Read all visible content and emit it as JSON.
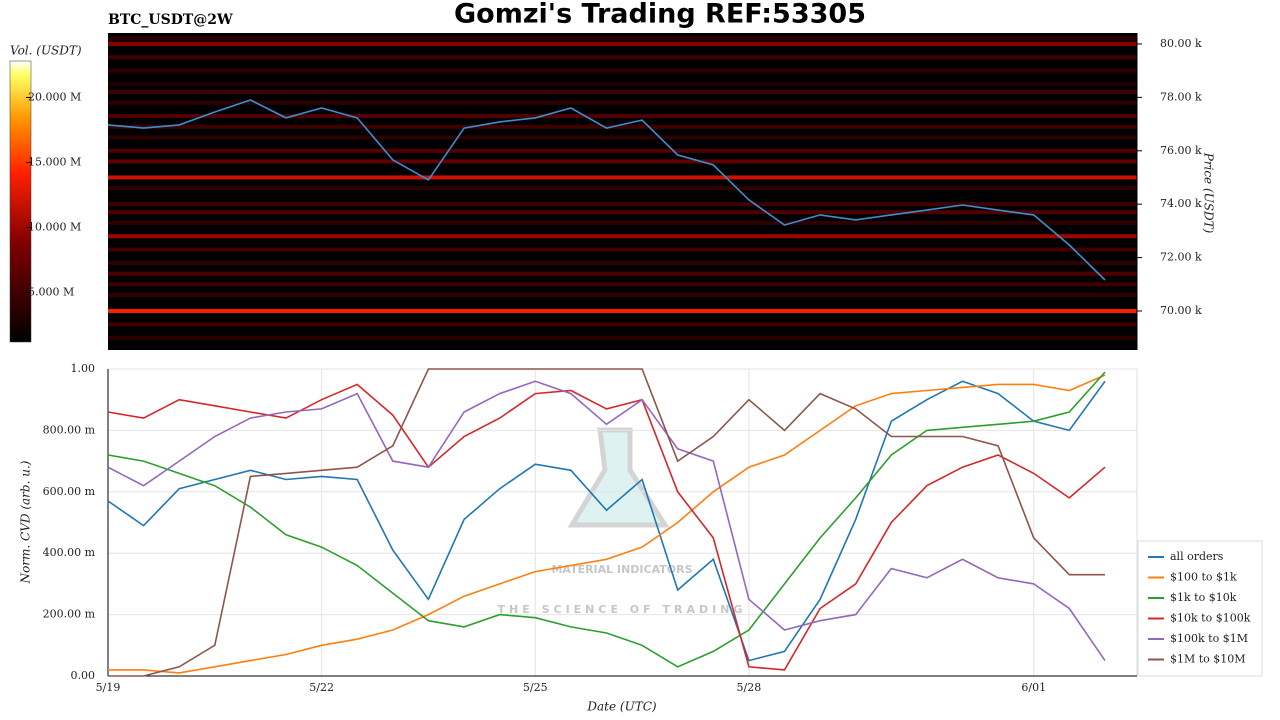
{
  "chart_data": [
    {
      "type": "heatmap",
      "symbol": "BTC_USDT@2W",
      "title": "Gomzi's Trading REF:53305",
      "colorbar_label": "Vol. (USDT)",
      "y_label": "Price (USDT)",
      "levels": [
        80200,
        80000,
        79500,
        79000,
        78500,
        78200,
        77800,
        77300,
        76900,
        76500,
        76000,
        75600,
        75000,
        74600,
        74000,
        73700,
        73300,
        72800,
        72300,
        71800,
        71400,
        71000,
        70600,
        70000,
        69500,
        69000
      ],
      "volumes": [
        4,
        9,
        5,
        4,
        3,
        5,
        4,
        6,
        5,
        4,
        6,
        7,
        12,
        4,
        5,
        6,
        4,
        10,
        5,
        4,
        6,
        5,
        4,
        14,
        5,
        4
      ],
      "clim": [
        1.2,
        22.8
      ],
      "cticks": [
        {
          "value": 5,
          "label": "5.000 M"
        },
        {
          "value": 10,
          "label": "10.000 M"
        },
        {
          "value": 15,
          "label": "15.000 M"
        },
        {
          "value": 20,
          "label": "20.000 M"
        }
      ],
      "series": [
        {
          "name": "price",
          "color": "#3b8fd0",
          "values": [
            76970,
            76850,
            76970,
            77450,
            77900,
            77230,
            77600,
            77230,
            75660,
            74910,
            76850,
            77080,
            77230,
            77600,
            76850,
            77150,
            75840,
            75470,
            74160,
            73220,
            73600,
            73410,
            73600,
            73780,
            73970,
            73780,
            73600,
            72470,
            71160
          ]
        }
      ],
      "ylim": [
        68540,
        80410
      ],
      "yticks": [
        {
          "value": 70000,
          "label": "70.00 k"
        },
        {
          "value": 72000,
          "label": "72.00 k"
        },
        {
          "value": 74000,
          "label": "74.00 k"
        },
        {
          "value": 76000,
          "label": "76.00 k"
        },
        {
          "value": 78000,
          "label": "78.00 k"
        },
        {
          "value": 80000,
          "label": "80.00 k"
        }
      ]
    },
    {
      "type": "line",
      "x_label": "Date (UTC)",
      "y_label": "Norm. CVD (arb. u.)",
      "watermark": [
        "MATERIAL INDICATORS",
        "THE SCIENCE OF TRADING"
      ],
      "categories": [
        "5/19",
        null,
        null,
        null,
        null,
        null,
        "5/22",
        null,
        null,
        null,
        null,
        null,
        "5/25",
        null,
        null,
        null,
        null,
        null,
        "5/28",
        null,
        null,
        null,
        null,
        null,
        null,
        null,
        "6/01",
        null,
        null
      ],
      "series": [
        {
          "name": "all orders",
          "color": "#1f77b4",
          "values": [
            0.57,
            0.49,
            0.61,
            0.64,
            0.67,
            0.64,
            0.65,
            0.64,
            0.41,
            0.25,
            0.51,
            0.61,
            0.69,
            0.67,
            0.54,
            0.64,
            0.28,
            0.38,
            0.05,
            0.08,
            0.25,
            0.51,
            0.83,
            0.9,
            0.96,
            0.92,
            0.83,
            0.8,
            0.96
          ]
        },
        {
          "name": "$100 to $1k",
          "color": "#ff7f0e",
          "values": [
            0.02,
            0.02,
            0.01,
            0.03,
            0.05,
            0.07,
            0.1,
            0.12,
            0.15,
            0.2,
            0.26,
            0.3,
            0.34,
            0.36,
            0.38,
            0.42,
            0.5,
            0.6,
            0.68,
            0.72,
            0.8,
            0.88,
            0.92,
            0.93,
            0.94,
            0.95,
            0.95,
            0.93,
            0.98
          ]
        },
        {
          "name": "$1k to $10k",
          "color": "#2ca02c",
          "values": [
            0.72,
            0.7,
            0.66,
            0.62,
            0.55,
            0.46,
            0.42,
            0.36,
            0.27,
            0.18,
            0.16,
            0.2,
            0.19,
            0.16,
            0.14,
            0.1,
            0.03,
            0.08,
            0.15,
            0.3,
            0.45,
            0.58,
            0.72,
            0.8,
            0.81,
            0.82,
            0.83,
            0.86,
            0.99
          ]
        },
        {
          "name": "$10k to $100k",
          "color": "#d62728",
          "values": [
            0.86,
            0.84,
            0.9,
            0.88,
            0.86,
            0.84,
            0.9,
            0.95,
            0.85,
            0.68,
            0.78,
            0.84,
            0.92,
            0.93,
            0.87,
            0.9,
            0.6,
            0.45,
            0.03,
            0.02,
            0.22,
            0.3,
            0.5,
            0.62,
            0.68,
            0.72,
            0.66,
            0.58,
            0.68
          ]
        },
        {
          "name": "$100k to $1M",
          "color": "#9467bd",
          "values": [
            0.68,
            0.62,
            0.7,
            0.78,
            0.84,
            0.86,
            0.87,
            0.92,
            0.7,
            0.68,
            0.86,
            0.92,
            0.96,
            0.92,
            0.82,
            0.9,
            0.74,
            0.7,
            0.25,
            0.15,
            0.18,
            0.2,
            0.35,
            0.32,
            0.38,
            0.32,
            0.3,
            0.22,
            0.05
          ]
        },
        {
          "name": "$1M to $10M",
          "color": "#8c564b",
          "values": [
            0,
            0,
            0.03,
            0.1,
            0.65,
            0.66,
            0.67,
            0.68,
            0.75,
            1.0,
            1.0,
            1.0,
            1.0,
            1.0,
            1.0,
            1.0,
            0.7,
            0.78,
            0.9,
            0.8,
            0.92,
            0.87,
            0.78,
            0.78,
            0.78,
            0.75,
            0.45,
            0.33,
            0.33
          ]
        }
      ],
      "ylim": [
        0,
        1
      ],
      "yticks": [
        {
          "value": 0,
          "label": "0.00"
        },
        {
          "value": 0.2,
          "label": "200.00 m"
        },
        {
          "value": 0.4,
          "label": "400.00 m"
        },
        {
          "value": 0.6,
          "label": "600.00 m"
        },
        {
          "value": 0.8,
          "label": "800.00 m"
        },
        {
          "value": 1,
          "label": "1.00"
        }
      ],
      "grid": true,
      "legend": "lower right"
    }
  ]
}
